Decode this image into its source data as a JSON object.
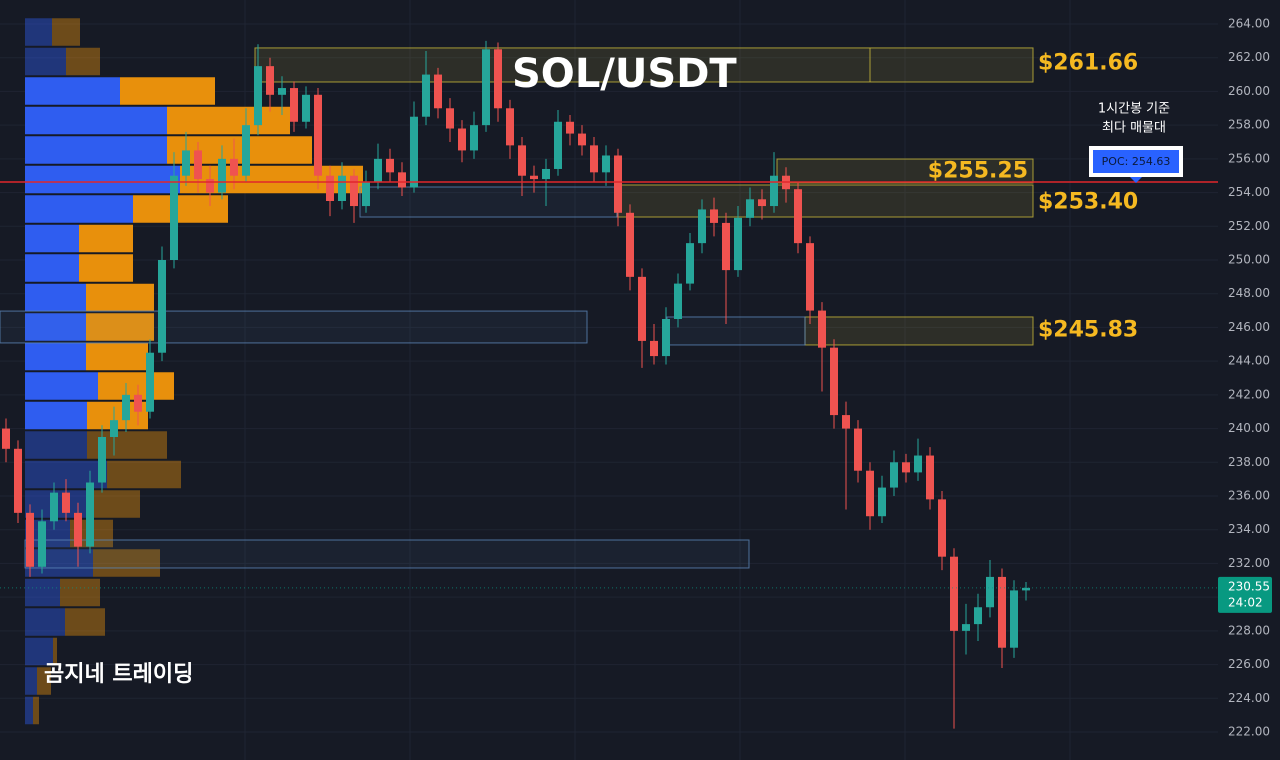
{
  "chart_data": {
    "type": "candlestick",
    "title": "SOL/USDT",
    "watermark": "곰지네 트레이딩",
    "up_color": "#26a69a",
    "down_color": "#ef5350",
    "ylim": [
      222,
      264
    ],
    "yticks": [
      {
        "value": 222,
        "label": "222.00"
      },
      {
        "value": 224,
        "label": "224.00"
      },
      {
        "value": 226,
        "label": "226.00"
      },
      {
        "value": 228,
        "label": "228.00"
      },
      {
        "value": 230,
        "label": "230.00"
      },
      {
        "value": 232,
        "label": "232.00"
      },
      {
        "value": 234,
        "label": "234.00"
      },
      {
        "value": 236,
        "label": "236.00"
      },
      {
        "value": 238,
        "label": "238.00"
      },
      {
        "value": 240,
        "label": "240.00"
      },
      {
        "value": 242,
        "label": "242.00"
      },
      {
        "value": 244,
        "label": "244.00"
      },
      {
        "value": 246,
        "label": "246.00"
      },
      {
        "value": 248,
        "label": "248.00"
      },
      {
        "value": 250,
        "label": "250.00"
      },
      {
        "value": 252,
        "label": "252.00"
      },
      {
        "value": 254,
        "label": "254.00"
      },
      {
        "value": 256,
        "label": "256.00"
      },
      {
        "value": 258,
        "label": "258.00"
      },
      {
        "value": 260,
        "label": "260.00"
      },
      {
        "value": 262,
        "label": "262.00"
      },
      {
        "value": 264,
        "label": "264.00"
      }
    ],
    "grid": true,
    "ohlc": [
      [
        240.0,
        240.6,
        238.0,
        238.8
      ],
      [
        238.8,
        239.3,
        234.4,
        235.0
      ],
      [
        235.0,
        235.5,
        231.2,
        231.8
      ],
      [
        231.8,
        235.2,
        231.4,
        234.5
      ],
      [
        234.5,
        236.8,
        234.0,
        236.2
      ],
      [
        236.2,
        237.0,
        234.5,
        235.0
      ],
      [
        235.0,
        235.6,
        231.8,
        233.0
      ],
      [
        233.0,
        237.5,
        232.6,
        236.8
      ],
      [
        236.8,
        240.2,
        236.2,
        239.5
      ],
      [
        239.5,
        241.3,
        238.4,
        240.5
      ],
      [
        240.5,
        242.7,
        239.8,
        242.0
      ],
      [
        242.0,
        242.6,
        240.2,
        241.0
      ],
      [
        241.0,
        245.3,
        240.6,
        244.5
      ],
      [
        244.5,
        250.8,
        244.0,
        250.0
      ],
      [
        250.0,
        256.4,
        249.5,
        255.0
      ],
      [
        255.0,
        257.6,
        254.4,
        256.5
      ],
      [
        256.5,
        257.0,
        254.0,
        254.8
      ],
      [
        254.8,
        255.6,
        253.2,
        254.0
      ],
      [
        254.0,
        256.8,
        253.6,
        256.0
      ],
      [
        256.0,
        257.2,
        254.2,
        255.0
      ],
      [
        255.0,
        259.0,
        254.6,
        258.0
      ],
      [
        258.0,
        262.8,
        257.4,
        261.5
      ],
      [
        261.5,
        262.0,
        258.8,
        259.8
      ],
      [
        259.8,
        260.9,
        258.6,
        260.2
      ],
      [
        260.2,
        260.6,
        257.6,
        258.2
      ],
      [
        258.2,
        260.3,
        257.8,
        259.8
      ],
      [
        259.8,
        260.2,
        254.2,
        255.0
      ],
      [
        255.0,
        255.6,
        252.6,
        253.5
      ],
      [
        253.5,
        255.8,
        253.0,
        255.0
      ],
      [
        255.0,
        255.4,
        252.2,
        253.2
      ],
      [
        253.2,
        255.3,
        252.8,
        254.6
      ],
      [
        254.6,
        256.9,
        254.2,
        256.0
      ],
      [
        256.0,
        256.6,
        254.6,
        255.2
      ],
      [
        255.2,
        255.8,
        253.8,
        254.3
      ],
      [
        254.3,
        259.4,
        254.0,
        258.5
      ],
      [
        258.5,
        262.4,
        258.0,
        261.0
      ],
      [
        261.0,
        261.4,
        258.4,
        259.0
      ],
      [
        259.0,
        259.6,
        257.0,
        257.8
      ],
      [
        257.8,
        258.3,
        255.8,
        256.5
      ],
      [
        256.5,
        258.8,
        256.0,
        258.0
      ],
      [
        258.0,
        263.0,
        257.6,
        262.5
      ],
      [
        262.5,
        262.9,
        258.2,
        259.0
      ],
      [
        259.0,
        259.5,
        256.0,
        256.8
      ],
      [
        256.8,
        257.3,
        253.8,
        255.0
      ],
      [
        255.0,
        255.6,
        254.0,
        254.8
      ],
      [
        254.8,
        256.0,
        253.2,
        255.4
      ],
      [
        255.4,
        258.9,
        255.0,
        258.2
      ],
      [
        258.2,
        258.6,
        256.8,
        257.5
      ],
      [
        257.5,
        258.0,
        256.2,
        256.8
      ],
      [
        256.8,
        257.3,
        254.6,
        255.2
      ],
      [
        255.2,
        256.8,
        254.4,
        256.2
      ],
      [
        256.2,
        256.6,
        252.0,
        252.8
      ],
      [
        252.8,
        253.3,
        248.2,
        249.0
      ],
      [
        249.0,
        249.5,
        243.6,
        245.2
      ],
      [
        245.2,
        246.2,
        243.8,
        244.3
      ],
      [
        244.3,
        247.2,
        243.8,
        246.5
      ],
      [
        246.5,
        249.2,
        246.0,
        248.6
      ],
      [
        248.6,
        251.6,
        248.2,
        251.0
      ],
      [
        251.0,
        253.6,
        250.4,
        253.0
      ],
      [
        253.0,
        253.7,
        251.4,
        252.2
      ],
      [
        252.2,
        252.8,
        246.2,
        249.4
      ],
      [
        249.4,
        253.2,
        249.0,
        252.5
      ],
      [
        252.5,
        254.3,
        252.0,
        253.6
      ],
      [
        253.6,
        254.2,
        252.4,
        253.2
      ],
      [
        253.2,
        256.4,
        252.8,
        255.0
      ],
      [
        255.0,
        255.5,
        253.4,
        254.2
      ],
      [
        254.2,
        254.6,
        250.4,
        251.0
      ],
      [
        251.0,
        251.4,
        246.2,
        247.0
      ],
      [
        247.0,
        247.5,
        242.2,
        244.8
      ],
      [
        244.8,
        245.3,
        240.0,
        240.8
      ],
      [
        240.8,
        241.6,
        235.2,
        240.0
      ],
      [
        240.0,
        240.5,
        236.8,
        237.5
      ],
      [
        237.5,
        238.0,
        234.0,
        234.8
      ],
      [
        234.8,
        237.2,
        234.4,
        236.5
      ],
      [
        236.5,
        238.7,
        236.0,
        238.0
      ],
      [
        238.0,
        238.5,
        236.8,
        237.4
      ],
      [
        237.4,
        239.4,
        236.9,
        238.4
      ],
      [
        238.4,
        238.9,
        235.2,
        235.8
      ],
      [
        235.8,
        236.3,
        231.6,
        232.4
      ],
      [
        232.4,
        232.9,
        222.2,
        228.0
      ],
      [
        228.0,
        229.6,
        226.6,
        228.4
      ],
      [
        228.4,
        230.2,
        227.4,
        229.4
      ],
      [
        229.4,
        232.2,
        228.8,
        231.2
      ],
      [
        231.2,
        231.7,
        225.8,
        227.0
      ],
      [
        227.0,
        231.0,
        226.4,
        230.4
      ],
      [
        230.4,
        230.9,
        229.8,
        230.55
      ]
    ],
    "volume_profile": {
      "bins": [
        222.4,
        224.15,
        225.9,
        227.65,
        229.4,
        231.15,
        232.9,
        234.65,
        236.4,
        238.15,
        239.9,
        241.65,
        243.4,
        245.15,
        246.9,
        248.65,
        250.4,
        252.15,
        253.9,
        255.65,
        257.4,
        259.15,
        260.9,
        262.65,
        264.4
      ],
      "buy": [
        8,
        12,
        28,
        40,
        35,
        68,
        45,
        65,
        82,
        62,
        62,
        73,
        61,
        61,
        61,
        54,
        54,
        108,
        155,
        142,
        142,
        95,
        41,
        27
      ],
      "sell": [
        6,
        14,
        4,
        40,
        40,
        67,
        43,
        50,
        74,
        80,
        61,
        76,
        62,
        68,
        68,
        54,
        54,
        95,
        183,
        145,
        123,
        95,
        34,
        28
      ],
      "buy_color": "#2f5df0",
      "sell_color": "#e8900c",
      "value_area": [
        239.9,
        260.9
      ]
    },
    "zones": [
      {
        "low": 260.56,
        "high": 262.58,
        "value": 261.66,
        "label": "$261.66",
        "color": "#c9b93a"
      },
      {
        "low": 254.57,
        "high": 255.99,
        "value": 255.25,
        "label": "$255.25",
        "color": "#c9b93a"
      },
      {
        "low": 252.55,
        "high": 254.45,
        "value": 253.4,
        "label": "$253.40",
        "color": "#c9b93a"
      },
      {
        "low": 244.96,
        "high": 246.62,
        "value": 245.83,
        "label": "$245.83",
        "color": "#c9b93a"
      },
      {
        "low": 252.55,
        "high": 254.33,
        "color": "#5b86b8"
      },
      {
        "low": 245.08,
        "high": 246.97,
        "color": "#5b86b8"
      },
      {
        "low": 231.73,
        "high": 233.39,
        "color": "#5b86b8"
      },
      {
        "low": 244.96,
        "high": 246.62,
        "color": "#5b86b8"
      }
    ],
    "poc": {
      "value": 254.63,
      "label": "POC: 254.63",
      "color": "#e0262b"
    },
    "poc_note": [
      "1시간봉 기준",
      "최다 매물대"
    ],
    "current": {
      "value": 230.55,
      "label": "230.55",
      "countdown": "24:02",
      "color": "#089981"
    }
  }
}
